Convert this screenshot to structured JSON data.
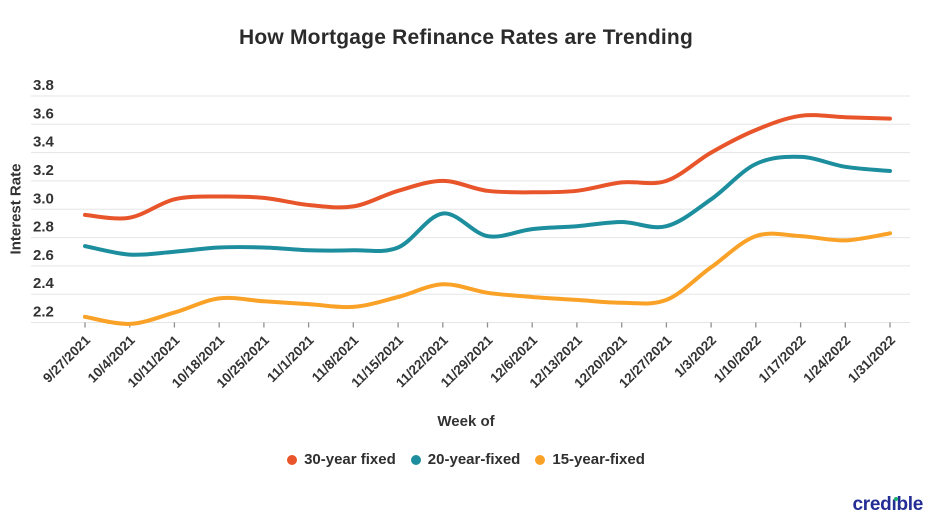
{
  "chart": {
    "title": "How Mortgage Refinance Rates are Trending",
    "y_axis_label": "Interest Rate",
    "x_axis_label": "Week of"
  },
  "chart_data": {
    "type": "line",
    "curve": "smooth",
    "grid": true,
    "legend_position": "bottom",
    "x": [
      "9/27/2021",
      "10/4/2021",
      "10/11/2021",
      "10/18/2021",
      "10/25/2021",
      "11/1/2021",
      "11/8/2021",
      "11/15/2021",
      "11/22/2021",
      "11/29/2021",
      "12/6/2021",
      "12/13/2021",
      "12/20/2021",
      "12/27/2021",
      "1/3/2022",
      "1/10/2022",
      "1/17/2022",
      "1/24/2022",
      "1/31/2022"
    ],
    "series": [
      {
        "name": "30-year fixed",
        "color": "#e8552b",
        "values": [
          2.96,
          2.94,
          3.07,
          3.09,
          3.08,
          3.03,
          3.02,
          3.13,
          3.2,
          3.13,
          3.12,
          3.13,
          3.19,
          3.2,
          3.4,
          3.56,
          3.66,
          3.65,
          3.64
        ]
      },
      {
        "name": "20-year-fixed",
        "color": "#1d8e9e",
        "values": [
          2.74,
          2.68,
          2.7,
          2.73,
          2.73,
          2.71,
          2.71,
          2.73,
          2.97,
          2.81,
          2.86,
          2.88,
          2.91,
          2.88,
          3.07,
          3.32,
          3.37,
          3.3,
          3.27
        ]
      },
      {
        "name": "15-year-fixed",
        "color": "#f9a227",
        "values": [
          2.24,
          2.19,
          2.27,
          2.37,
          2.35,
          2.33,
          2.31,
          2.38,
          2.47,
          2.41,
          2.38,
          2.36,
          2.34,
          2.36,
          2.59,
          2.81,
          2.81,
          2.78,
          2.83
        ]
      }
    ],
    "ylim": [
      2.2,
      3.8
    ],
    "yticks": [
      3.8,
      3.6,
      3.4,
      3.2,
      3.0,
      2.8,
      2.6,
      2.4,
      2.2
    ],
    "ytick_labels": [
      "3.8",
      "3.6",
      "3.4",
      "3.2",
      "3.0",
      "2.8",
      "2.6",
      "2.4",
      "2.2"
    ]
  },
  "watermark": {
    "text": "credible",
    "pre": "cred",
    "i": "ı",
    "post": "ble",
    "color": "#232d94",
    "dot_color": "#18b46f"
  },
  "colors": {
    "grid": "#e5e5e5",
    "tick": "#8f8f8f",
    "text": "#333333",
    "background": "#ffffff"
  }
}
